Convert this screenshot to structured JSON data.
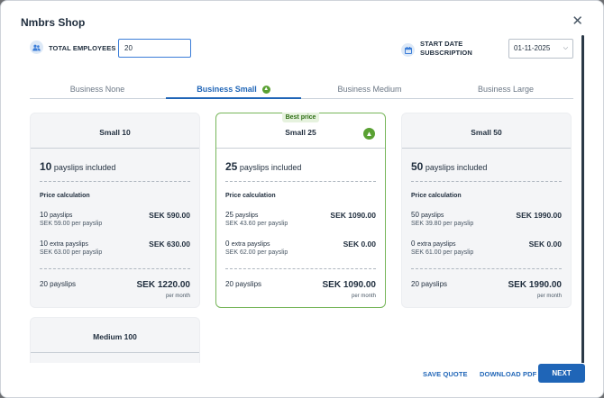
{
  "modal": {
    "title": "Nmbrs Shop"
  },
  "fields": {
    "employees_label": "TOTAL EMPLOYEES",
    "employees_value": "20",
    "start_label_1": "START DATE",
    "start_label_2": "SUBSCRIPTION",
    "start_value": "01-11-2025"
  },
  "tabs": [
    {
      "label": "Business None"
    },
    {
      "label": "Business Small",
      "active": true
    },
    {
      "label": "Business Medium"
    },
    {
      "label": "Business Large"
    }
  ],
  "cards": [
    {
      "name": "Small 10",
      "count": "10",
      "included_suffix": "payslips included",
      "price_label": "Price calculation",
      "line1_count": "10",
      "line1_unit": "payslips",
      "line1_sub": "SEK 59.00 per payslip",
      "line1_price": "SEK 590.00",
      "line2_count": "10",
      "line2_unit": "extra payslips",
      "line2_sub": "SEK 63.00 per payslip",
      "line2_price": "SEK 630.00",
      "total_label": "20 payslips",
      "total_price": "SEK 1220.00",
      "per_month": "per month"
    },
    {
      "name": "Small 25",
      "badge": "Best price",
      "count": "25",
      "included_suffix": "payslips included",
      "price_label": "Price calculation",
      "line1_count": "25",
      "line1_unit": "payslips",
      "line1_sub": "SEK 43.60 per payslip",
      "line1_price": "SEK 1090.00",
      "line2_count": "0",
      "line2_unit": "extra payslips",
      "line2_sub": "SEK 62.00 per payslip",
      "line2_price": "SEK 0.00",
      "total_label": "20 payslips",
      "total_price": "SEK 1090.00",
      "per_month": "per month"
    },
    {
      "name": "Small 50",
      "count": "50",
      "included_suffix": "payslips included",
      "price_label": "Price calculation",
      "line1_count": "50",
      "line1_unit": "payslips",
      "line1_sub": "SEK 39.80 per payslip",
      "line1_price": "SEK 1990.00",
      "line2_count": "0",
      "line2_unit": "extra payslips",
      "line2_sub": "SEK 61.00 per payslip",
      "line2_price": "SEK 0.00",
      "total_label": "20 payslips",
      "total_price": "SEK 1990.00",
      "per_month": "per month"
    },
    {
      "name": "Medium 100"
    }
  ],
  "footer": {
    "save_quote": "SAVE QUOTE",
    "download_pdf": "DOWNLOAD PDF",
    "next": "NEXT"
  },
  "icons": {
    "close": "close-icon",
    "employees": "people-icon",
    "calendar": "calendar-icon",
    "chevron": "chevron-down-icon",
    "thumb": "thumbs-up-icon"
  },
  "colors": {
    "accent": "#1f65b7",
    "selected_border": "#77b65a",
    "thumb": "#5aa133",
    "best_badge_bg": "#e6f2de"
  }
}
